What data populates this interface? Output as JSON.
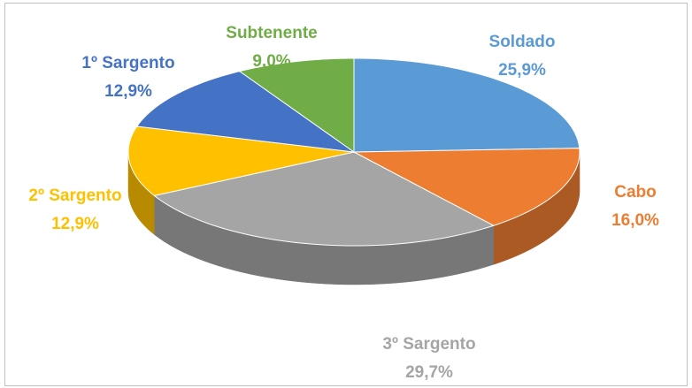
{
  "chart_data": {
    "type": "pie",
    "categories": [
      "Soldado",
      "Cabo",
      "3º Sargento",
      "2º Sargento",
      "1º Sargento",
      "Subtenente"
    ],
    "values": [
      25.9,
      16.0,
      29.7,
      12.9,
      12.9,
      9.0
    ],
    "value_labels": [
      "25,9%",
      "16,0%",
      "29,7%",
      "12,9%",
      "12,9%",
      "9,0%"
    ],
    "colors": [
      "#5b9bd5",
      "#ed7d31",
      "#a5a5a5",
      "#ffc000",
      "#4472c4",
      "#70ad47"
    ]
  }
}
